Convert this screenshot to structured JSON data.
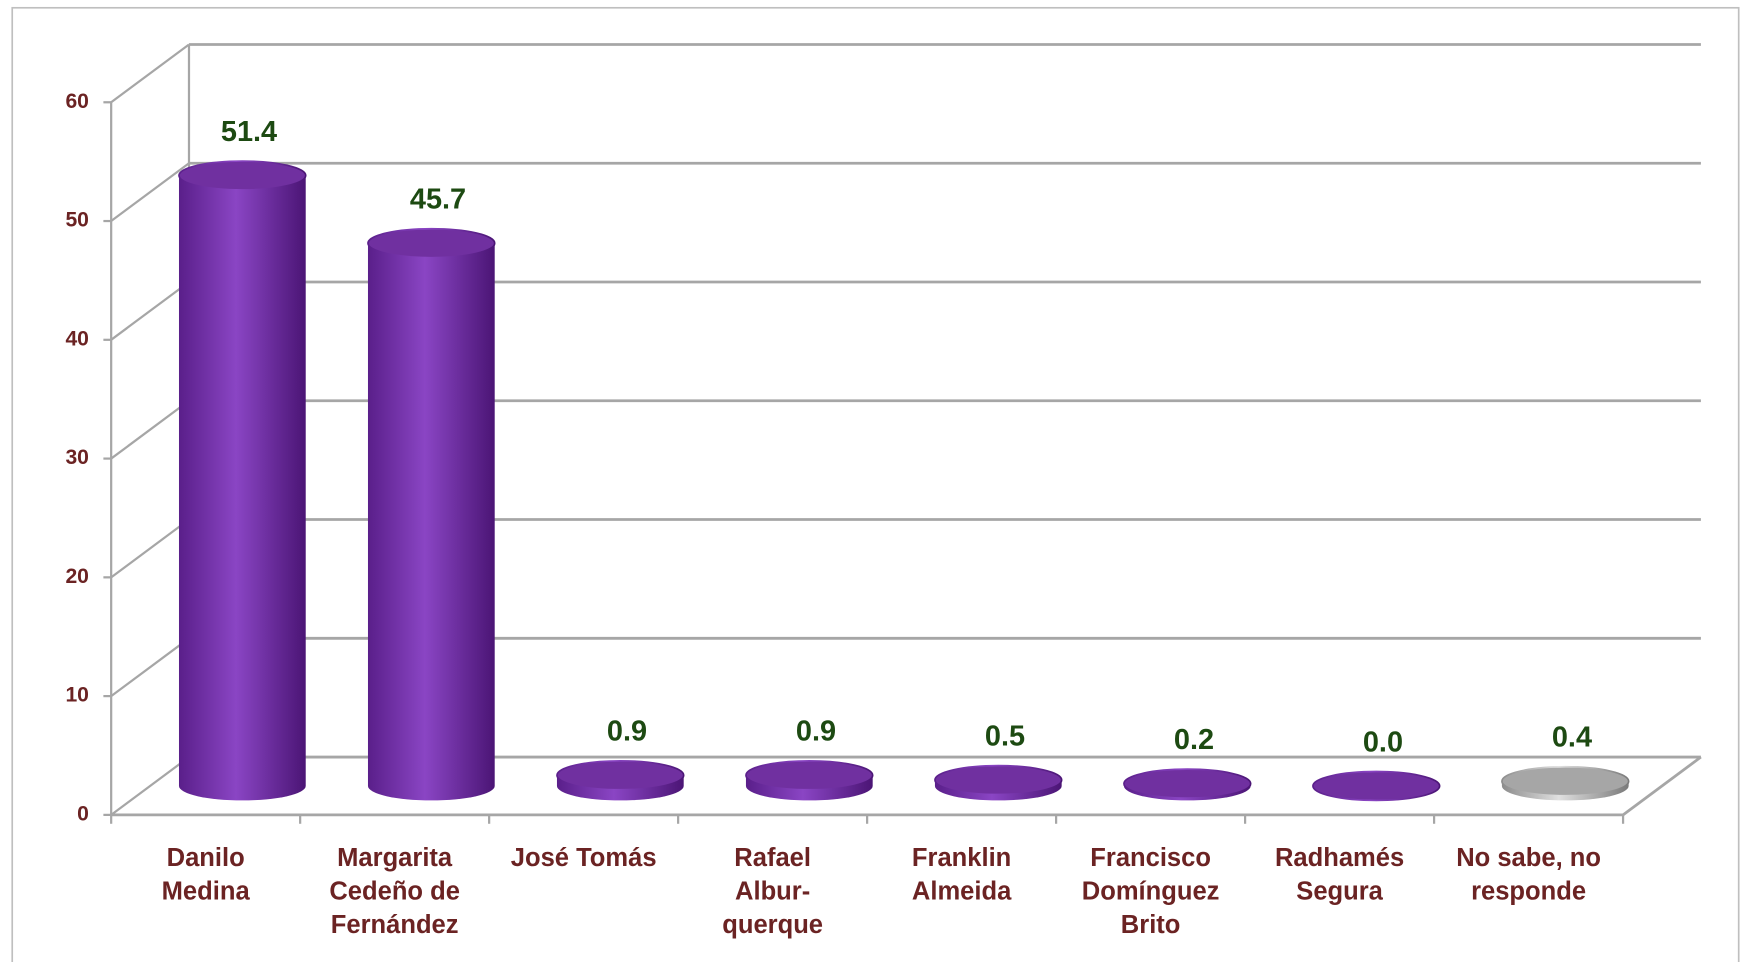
{
  "chart_data": {
    "type": "bar3d",
    "categories": [
      [
        "Danilo",
        "Medina"
      ],
      [
        "Margarita",
        "Cedeño de",
        "Fernández"
      ],
      [
        "José Tomás"
      ],
      [
        "Rafael",
        "Albur-",
        "querque"
      ],
      [
        "Franklin",
        "Almeida"
      ],
      [
        "Francisco",
        "Domínguez",
        "Brito"
      ],
      [
        "Radhamés",
        "Segura"
      ],
      [
        "No sabe, no",
        "responde"
      ]
    ],
    "values": [
      51.4,
      45.7,
      0.9,
      0.9,
      0.5,
      0.2,
      0.0,
      0.4
    ],
    "value_labels": [
      "51.4",
      "45.7",
      "0.9",
      "0.9",
      "0.5",
      "0.2",
      "0.0",
      "0.4"
    ],
    "colors": [
      "#7030a0",
      "#7030a0",
      "#7030a0",
      "#7030a0",
      "#7030a0",
      "#7030a0",
      "#7030a0",
      "#a6a6a6"
    ],
    "ylim": [
      0,
      60
    ],
    "yticks": [
      0,
      10,
      20,
      30,
      40,
      50,
      60
    ],
    "grid": true
  }
}
